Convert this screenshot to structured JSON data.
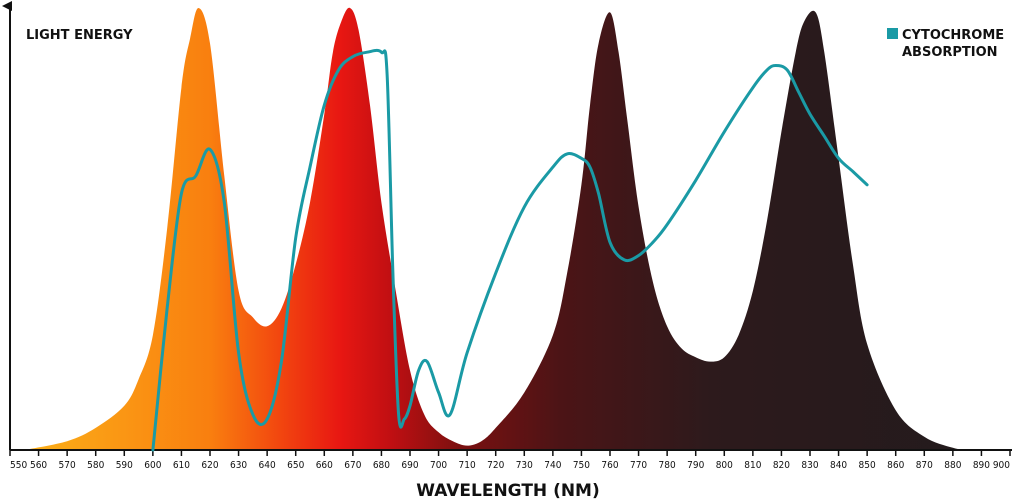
{
  "chart_data": {
    "type": "area",
    "ylabel": "LIGHT ENERGY",
    "xlabel": "WAVELENGTH (NM)",
    "xlim": [
      550,
      900
    ],
    "ylim": [
      0,
      1
    ],
    "x_ticks": [
      550,
      560,
      570,
      580,
      590,
      600,
      610,
      620,
      630,
      640,
      650,
      660,
      670,
      680,
      690,
      700,
      710,
      720,
      730,
      740,
      750,
      760,
      770,
      780,
      790,
      800,
      810,
      820,
      830,
      840,
      850,
      860,
      870,
      880,
      890,
      900
    ],
    "grid": false,
    "legend": {
      "position": "top-right",
      "label_lines": [
        "CYTOCHROME",
        "ABSORPTION"
      ]
    },
    "series": [
      {
        "kind": "light-energy-area",
        "x": [
          555,
          570,
          580,
          590,
          595,
          600,
          605,
          610,
          613,
          616,
          620,
          625,
          630,
          635,
          640,
          645,
          650,
          655,
          660,
          663,
          666,
          669,
          672,
          676,
          680,
          685,
          690,
          695,
          700,
          705,
          710,
          715,
          720,
          730,
          740,
          745,
          750,
          753,
          756,
          760,
          763,
          766,
          770,
          775,
          780,
          785,
          790,
          795,
          800,
          805,
          810,
          815,
          820,
          825,
          828,
          832,
          835,
          840,
          845,
          850,
          860,
          870,
          880,
          885
        ],
        "values": [
          0.0,
          0.02,
          0.05,
          0.1,
          0.16,
          0.26,
          0.5,
          0.82,
          0.93,
          1.0,
          0.92,
          0.62,
          0.36,
          0.3,
          0.28,
          0.32,
          0.42,
          0.56,
          0.76,
          0.9,
          0.97,
          1.0,
          0.95,
          0.78,
          0.56,
          0.36,
          0.18,
          0.08,
          0.04,
          0.02,
          0.01,
          0.02,
          0.05,
          0.13,
          0.26,
          0.4,
          0.6,
          0.78,
          0.92,
          0.99,
          0.9,
          0.75,
          0.55,
          0.38,
          0.28,
          0.23,
          0.21,
          0.2,
          0.21,
          0.26,
          0.36,
          0.52,
          0.72,
          0.9,
          0.97,
          0.99,
          0.9,
          0.66,
          0.42,
          0.24,
          0.09,
          0.03,
          0.005,
          0.0
        ],
        "gradient": [
          "#fbb41a",
          "#f97f0f",
          "#f2460f",
          "#e81712",
          "#c10f12",
          "#7b1010",
          "#4c1416",
          "#2d1a1c",
          "#221b1d"
        ]
      },
      {
        "kind": "absorption-line",
        "x": [
          600,
          605,
          610,
          615,
          620,
          625,
          630,
          635,
          640,
          645,
          650,
          655,
          660,
          665,
          670,
          675,
          680,
          682,
          684,
          686,
          688,
          690,
          693,
          696,
          700,
          704,
          710,
          720,
          730,
          740,
          745,
          750,
          753,
          756,
          760,
          765,
          770,
          775,
          780,
          790,
          800,
          810,
          815,
          818,
          822,
          826,
          830,
          835,
          840,
          845,
          850
        ],
        "values": [
          0.0,
          0.32,
          0.58,
          0.62,
          0.68,
          0.56,
          0.22,
          0.08,
          0.07,
          0.2,
          0.48,
          0.64,
          0.78,
          0.86,
          0.89,
          0.9,
          0.9,
          0.85,
          0.4,
          0.08,
          0.07,
          0.1,
          0.18,
          0.2,
          0.13,
          0.08,
          0.22,
          0.4,
          0.55,
          0.64,
          0.67,
          0.66,
          0.64,
          0.58,
          0.47,
          0.43,
          0.44,
          0.47,
          0.51,
          0.61,
          0.72,
          0.82,
          0.86,
          0.87,
          0.86,
          0.81,
          0.76,
          0.71,
          0.66,
          0.63,
          0.6
        ],
        "color": "#1a9aa5"
      }
    ]
  },
  "colors": {
    "axis": "#111111",
    "absorption": "#1a9aa5"
  }
}
